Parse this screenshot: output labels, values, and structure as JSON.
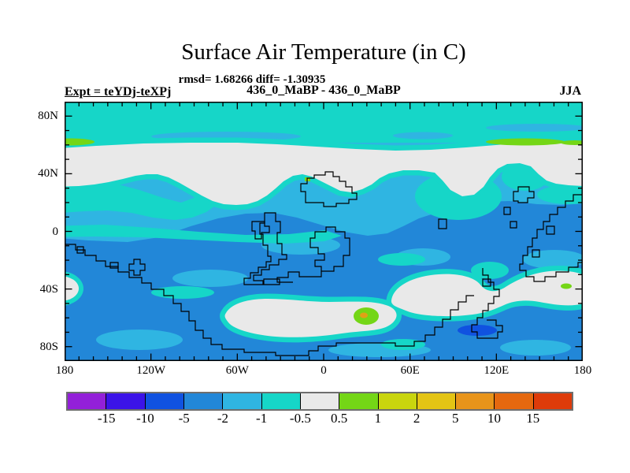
{
  "header": {
    "title": "Surface Air Temperature (in C)",
    "stats": "rmsd= 1.68266 diff= -1.30935",
    "comparison": "436_0_MaBP - 436_0_MaBP",
    "experiment": "Expt = teYDj-teXPj",
    "season": "JJA"
  },
  "axes": {
    "lat_ticks": [
      {
        "label": "80N",
        "lat": 80
      },
      {
        "label": "40N",
        "lat": 40
      },
      {
        "label": "0",
        "lat": 0
      },
      {
        "label": "40S",
        "lat": -40
      },
      {
        "label": "80S",
        "lat": -80
      }
    ],
    "lon_ticks": [
      {
        "label": "180",
        "lon": -180
      },
      {
        "label": "120W",
        "lon": -120
      },
      {
        "label": "60W",
        "lon": -60
      },
      {
        "label": "0",
        "lon": 0
      },
      {
        "label": "60E",
        "lon": 60
      },
      {
        "label": "120E",
        "lon": 120
      },
      {
        "label": "180",
        "lon": 180
      }
    ],
    "minor_tick_step_deg": 10
  },
  "colorbar": {
    "boundary_labels": [
      "-15",
      "-10",
      "-5",
      "-2",
      "-1",
      "-0.5",
      "0.5",
      "1",
      "2",
      "5",
      "10",
      "15"
    ],
    "cell_colors": [
      "#9320d9",
      "#3b13e8",
      "#1052e0",
      "#2287d8",
      "#2fb5e2",
      "#16d6c8",
      "#e9e9e9",
      "#74d616",
      "#c9d50e",
      "#e4c414",
      "#e8941a",
      "#e5680f",
      "#de3b0a"
    ]
  },
  "chart_data": {
    "type": "heatmap",
    "title": "Surface Air Temperature (in C)",
    "subtitle_stats": {
      "rmsd": 1.68266,
      "diff": -1.30935
    },
    "comparison": "436_0_MaBP - 436_0_MaBP",
    "experiment": "teYDj-teXPj",
    "season": "JJA",
    "units": "degrees C (difference)",
    "projection": "equirectangular lat-lon, 180W-180E, 90S-90N",
    "contour_levels": [
      -15,
      -10,
      -5,
      -2,
      -1,
      -0.5,
      0.5,
      1,
      2,
      5,
      10,
      15
    ],
    "level_colors": [
      "#9320d9",
      "#3b13e8",
      "#1052e0",
      "#2287d8",
      "#2fb5e2",
      "#16d6c8",
      "#e9e9e9",
      "#74d616",
      "#c9d50e",
      "#e4c414",
      "#e8941a",
      "#e5680f",
      "#de3b0a"
    ],
    "x_tick_labels": [
      "180",
      "120W",
      "60W",
      "0",
      "60E",
      "120E",
      "180"
    ],
    "y_tick_labels": [
      "80N",
      "40N",
      "0",
      "40S",
      "80S"
    ],
    "legend_position": "bottom horizontal colorbar",
    "grid": false,
    "regions": [
      {
        "area": "polar band 62N-90N, all longitudes",
        "value_range_C": "-1 to -0.5"
      },
      {
        "area": "lens ~70N, 110W-40W and ~72N 115E-175E",
        "value_range_C": "-2 to -1"
      },
      {
        "area": "thin streaks ~62N near 180W-168W and 115E-178E",
        "value_range_C": "0.5 to 1"
      },
      {
        "area": "mid-latitude band ~32N-62N, all longitudes, wavy southern edge dipping to ~18N near 85W-25W",
        "value_range_C": "-0.5 to 0.5"
      },
      {
        "area": "tropics 0-30N",
        "value_range_C": "-2 to -1 with -1 to -0.5 patches (large -1 to -0.5 area 70E-150E)"
      },
      {
        "area": "southern hemisphere background 5S-90S",
        "value_range_C": "-5 to -2 with -2 to -1 patches"
      },
      {
        "area": "blob ~50S-73S, 60W-50E",
        "value_range_C": "-0.5 to 0.5"
      },
      {
        "area": "blob ~28S-52S, 55E-180 reaching map edge (wraps to ~34S-46S at 180W)",
        "value_range_C": "-0.5 to 0.5"
      },
      {
        "area": "spot inside southern blob ~62S, 25E with small warm core",
        "value_range_C": "0.5 to 1 (core 2 to 5)"
      },
      {
        "area": "small spot ~38S, 172E",
        "value_range_C": "0.5 to 1"
      },
      {
        "area": "patch ~63S, 95E-115E",
        "value_range_C": "-10 to -5"
      },
      {
        "area": "tiny dot ~38N, 8W at coast corner",
        "value_range_C": "0.5 to 2"
      }
    ],
    "coastlines": "stepped black model-grid paleo-continent outlines"
  }
}
